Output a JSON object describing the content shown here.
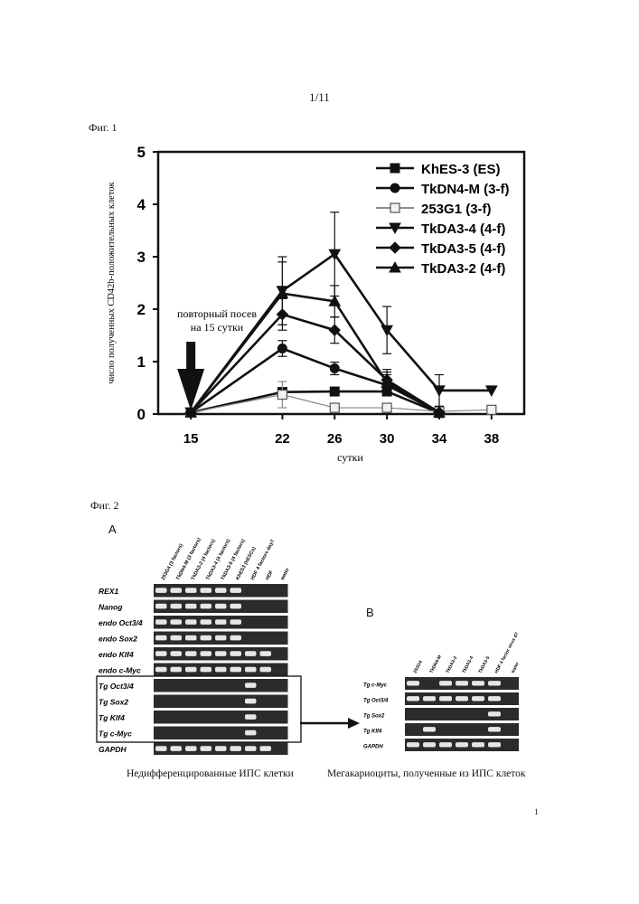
{
  "page": {
    "number": "1/11",
    "footer_number": "1"
  },
  "fig1": {
    "label": "Фиг. 1",
    "arrow_note_line1": "повторный посев",
    "arrow_note_line2": "на 15 сутки"
  },
  "chart_data": {
    "type": "line",
    "title": "",
    "xlabel": "сутки",
    "ylabel": "число полученных CD42b-положительных клеток",
    "x": [
      15,
      22,
      26,
      30,
      34,
      38
    ],
    "xticks": [
      "15",
      "22",
      "26",
      "30",
      "34",
      "38"
    ],
    "ylim": [
      0,
      5
    ],
    "yticks": [
      "0",
      "1",
      "2",
      "3",
      "4",
      "5"
    ],
    "legend_position": "top-right",
    "grid": false,
    "series": [
      {
        "name": "KhES-3 (ES)",
        "marker": "square",
        "values": [
          0.03,
          0.42,
          0.43,
          0.43,
          0.02,
          null
        ],
        "errors": [
          0,
          0.08,
          0.06,
          0.05,
          0,
          0
        ]
      },
      {
        "name": "TkDN4-M (3-f)",
        "marker": "circle",
        "values": [
          0.03,
          1.25,
          0.87,
          0.55,
          0.03,
          null
        ],
        "errors": [
          0,
          0.15,
          0.12,
          0.2,
          0,
          0
        ]
      },
      {
        "name": "253G1 (3-f)",
        "marker": "open-square",
        "values": [
          0.03,
          0.37,
          0.12,
          0.12,
          0.05,
          0.08
        ],
        "errors": [
          0,
          0.25,
          0.05,
          0.04,
          0.03,
          0.03
        ]
      },
      {
        "name": "TkDA3-4 (4-f)",
        "marker": "triangle-down",
        "values": [
          0.03,
          2.35,
          3.05,
          1.6,
          0.45,
          0.45
        ],
        "errors": [
          0,
          0.65,
          0.8,
          0.45,
          0.3,
          0
        ]
      },
      {
        "name": "TkDA3-5 (4-f)",
        "marker": "diamond",
        "values": [
          0.03,
          1.9,
          1.6,
          0.65,
          0.03,
          null
        ],
        "errors": [
          0,
          0.3,
          0.25,
          0.2,
          0,
          0
        ]
      },
      {
        "name": "TkDA3-2 (4-f)",
        "marker": "triangle-up",
        "values": [
          0.03,
          2.3,
          2.15,
          0.6,
          0.03,
          null
        ],
        "errors": [
          0,
          0.6,
          0.3,
          0.2,
          0,
          0
        ]
      }
    ]
  },
  "fig2": {
    "label": "Фиг. 2",
    "panel_a": {
      "letter": "A",
      "lanes": [
        "253G4 (3 factors)",
        "TkDN4-M (3 factors)",
        "TkDA3-2 (4 factors)",
        "TkDA3-4 (4 factors)",
        "TkDA3-5 (4 factors)",
        "KhES3 (hESCs)",
        "HDF 4 factors day7",
        "HDF",
        "water"
      ],
      "rows": [
        {
          "label": "REX1",
          "bands": [
            1,
            1,
            1,
            1,
            1,
            1,
            0,
            0,
            0
          ]
        },
        {
          "label": "Nanog",
          "bands": [
            1,
            1,
            1,
            1,
            1,
            1,
            0,
            0,
            0
          ]
        },
        {
          "label": "endo Oct3/4",
          "bands": [
            1,
            1,
            1,
            1,
            1,
            1,
            0,
            0,
            0
          ]
        },
        {
          "label": "endo Sox2",
          "bands": [
            1,
            1,
            1,
            1,
            1,
            1,
            0,
            0,
            0
          ]
        },
        {
          "label": "endo Klf4",
          "bands": [
            1,
            1,
            1,
            1,
            1,
            1,
            1,
            1,
            0
          ]
        },
        {
          "label": "endo c-Myc",
          "bands": [
            1,
            1,
            1,
            1,
            1,
            1,
            1,
            1,
            0
          ]
        },
        {
          "label": "Tg Oct3/4",
          "bands": [
            0,
            0,
            0,
            0,
            0,
            0,
            1,
            0,
            0
          ]
        },
        {
          "label": "Tg Sox2",
          "bands": [
            0,
            0,
            0,
            0,
            0,
            0,
            1,
            0,
            0
          ]
        },
        {
          "label": "Tg Klf4",
          "bands": [
            0,
            0,
            0,
            0,
            0,
            0,
            1,
            0,
            0
          ]
        },
        {
          "label": "Tg c-Myc",
          "bands": [
            0,
            0,
            0,
            0,
            0,
            0,
            1,
            0,
            0
          ]
        },
        {
          "label": "GAPDH",
          "bands": [
            1,
            1,
            1,
            1,
            1,
            1,
            1,
            1,
            0
          ]
        }
      ],
      "caption": "Недифференцированные ИПС клетки"
    },
    "panel_b": {
      "letter": "B",
      "lanes": [
        "253G4",
        "TkDN4-M",
        "TkDA3-2",
        "TkDA3-4",
        "TkDA3-5",
        "HDF 4 factor virus d7",
        "water"
      ],
      "rows": [
        {
          "label": "Tg c-Myc",
          "bands": [
            1,
            0,
            1,
            1,
            1,
            1,
            0
          ]
        },
        {
          "label": "Tg Oct3/4",
          "bands": [
            1,
            1,
            1,
            1,
            1,
            1,
            0
          ]
        },
        {
          "label": "Tg Sox2",
          "bands": [
            0,
            0,
            0,
            0,
            0,
            1,
            0
          ]
        },
        {
          "label": "Tg Klf4",
          "bands": [
            0,
            1,
            0,
            0,
            0,
            1,
            0
          ]
        },
        {
          "label": "GAPDH",
          "bands": [
            1,
            1,
            1,
            1,
            1,
            1,
            0
          ]
        }
      ],
      "caption": "Мегакариоциты, полученные из ИПС клеток"
    }
  }
}
